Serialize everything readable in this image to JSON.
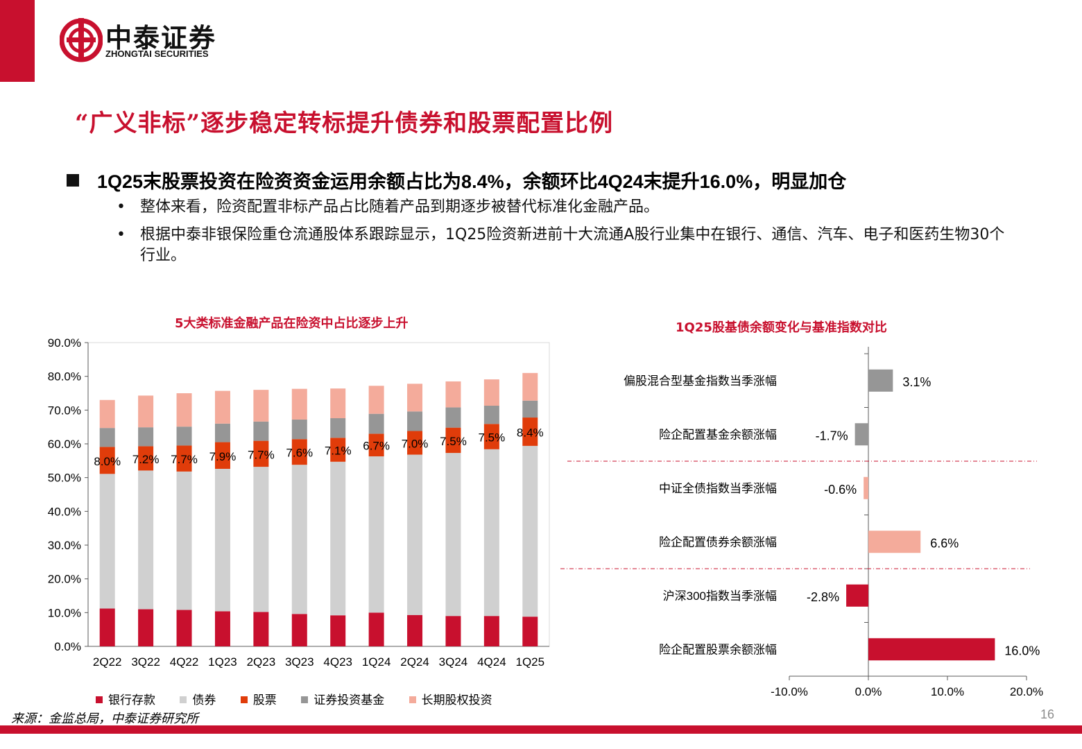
{
  "brand": {
    "name_cn": "中泰证券",
    "name_en": "ZHONGTAI SECURITIES",
    "color": "#c8102e"
  },
  "title": "“广义非标”逐步稳定转标提升债券和股票配置比例",
  "main_bullet": "1Q25末股票投资在险资资金运用余额占比为8.4%，余额环比4Q24末提升16.0%，明显加仓",
  "sub_bullets": [
    {
      "mark": "•",
      "text": "整体来看，险资配置非标产品占比随着产品到期逐步被替代标准化金融产品。"
    },
    {
      "mark": "•",
      "text": "根据中泰非银保险重仓流通股体系跟踪显示，1Q25险资新进前十大流通A股行业集中在银行、通信、汽车、电子和医药生物30个行业。"
    }
  ],
  "source": "来源：金监总局，中泰证券研究所",
  "page_number": "16",
  "chart_data": [
    {
      "type": "bar",
      "stacked": true,
      "title": "5大类标准金融产品在险资中占比逐步上升",
      "categories": [
        "2Q22",
        "3Q22",
        "4Q22",
        "1Q23",
        "2Q23",
        "3Q23",
        "4Q23",
        "1Q24",
        "2Q24",
        "3Q24",
        "4Q24",
        "1Q25"
      ],
      "ylim": [
        0,
        90
      ],
      "yticks": [
        "0.0%",
        "10.0%",
        "20.0%",
        "30.0%",
        "40.0%",
        "50.0%",
        "60.0%",
        "70.0%",
        "80.0%",
        "90.0%"
      ],
      "series": [
        {
          "name": "银行存款",
          "color": "#c8102e",
          "values": [
            11.2,
            11.0,
            10.8,
            10.4,
            10.2,
            9.6,
            9.2,
            10.0,
            9.3,
            9.0,
            9.0,
            8.8
          ]
        },
        {
          "name": "债券",
          "color": "#d0d0d0",
          "values": [
            39.9,
            41.1,
            41.0,
            42.2,
            43.0,
            44.2,
            45.5,
            46.3,
            47.5,
            48.3,
            49.4,
            50.6
          ]
        },
        {
          "name": "股票",
          "color": "#e03c0a",
          "values": [
            8.0,
            7.2,
            7.7,
            7.9,
            7.7,
            7.6,
            7.1,
            6.7,
            7.0,
            7.5,
            7.5,
            8.4
          ]
        },
        {
          "name": "证券投资基金",
          "color": "#969696",
          "values": [
            5.6,
            5.6,
            5.6,
            5.5,
            5.7,
            5.8,
            5.8,
            5.9,
            5.8,
            6.0,
            5.4,
            5.0
          ]
        },
        {
          "name": "长期股权投资",
          "color": "#f4ab9b",
          "values": [
            8.3,
            9.4,
            9.9,
            9.7,
            9.4,
            9.1,
            8.8,
            8.3,
            8.2,
            7.7,
            7.8,
            8.2
          ]
        }
      ],
      "stock_labels": [
        "8.0%",
        "7.2%",
        "7.7%",
        "7.9%",
        "7.7%",
        "7.6%",
        "7.1%",
        "6.7%",
        "7.0%",
        "7.5%",
        "7.5%",
        "8.4%"
      ]
    },
    {
      "type": "bar",
      "orientation": "horizontal",
      "title": "1Q25股基债余额变化与基准指数对比",
      "xlim": [
        -10,
        20
      ],
      "xticks": [
        "-10.0%",
        "0.0%",
        "10.0%",
        "20.0%"
      ],
      "bars": [
        {
          "label": "偏股混合型基金指数当季涨幅",
          "value": 3.1,
          "text": "3.1%",
          "color": "#969696"
        },
        {
          "label": "险企配置基金余额涨幅",
          "value": -1.7,
          "text": "-1.7%",
          "color": "#969696"
        },
        {
          "label": "中证全债指数当季涨幅",
          "value": -0.6,
          "text": "-0.6%",
          "color": "#f4ab9b"
        },
        {
          "label": "险企配置债券余额涨幅",
          "value": 6.6,
          "text": "6.6%",
          "color": "#f4ab9b"
        },
        {
          "label": "沪深300指数当季涨幅",
          "value": -2.8,
          "text": "-2.8%",
          "color": "#c8102e"
        },
        {
          "label": "险企配置股票余额涨幅",
          "value": 16.0,
          "text": "16.0%",
          "color": "#c8102e"
        }
      ]
    }
  ]
}
